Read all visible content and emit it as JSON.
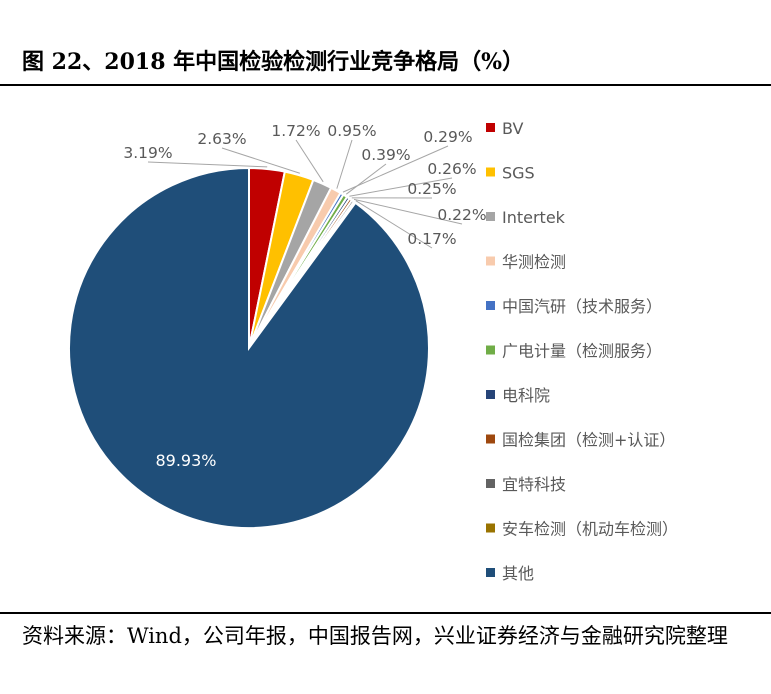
{
  "figure": {
    "title": "图 22、2018 年中国检验检测行业竞争格局（%）",
    "source": "资料来源：Wind，公司年报，中国报告网，兴业证券经济与金融研究院整理"
  },
  "chart_data": {
    "type": "pie",
    "title": "",
    "unit": "%",
    "legend_position": "right",
    "series": [
      {
        "name": "BV",
        "value": 3.19,
        "label": "3.19%",
        "color": "#c00000"
      },
      {
        "name": "SGS",
        "value": 2.63,
        "label": "2.63%",
        "color": "#ffc000"
      },
      {
        "name": "Intertek",
        "value": 1.72,
        "label": "1.72%",
        "color": "#a5a5a5"
      },
      {
        "name": "华测检测",
        "value": 0.95,
        "label": "0.95%",
        "color": "#f8cbad"
      },
      {
        "name": "中国汽研（技术服务）",
        "value": 0.29,
        "label": "0.29%",
        "color": "#4472c4"
      },
      {
        "name": "广电计量（检测服务）",
        "value": 0.39,
        "label": "0.39%",
        "color": "#70ad47"
      },
      {
        "name": "电科院",
        "value": 0.26,
        "label": "0.26%",
        "color": "#264478"
      },
      {
        "name": "国检集团（检测+认证）",
        "value": 0.25,
        "label": "0.25%",
        "color": "#9e480e"
      },
      {
        "name": "宜特科技",
        "value": 0.22,
        "label": "0.22%",
        "color": "#636363"
      },
      {
        "name": "安车检测（机动车检测）",
        "value": 0.17,
        "label": "0.17%",
        "color": "#997300"
      },
      {
        "name": "其他",
        "value": 89.93,
        "label": "89.93%",
        "color": "#1f4e79"
      }
    ]
  }
}
